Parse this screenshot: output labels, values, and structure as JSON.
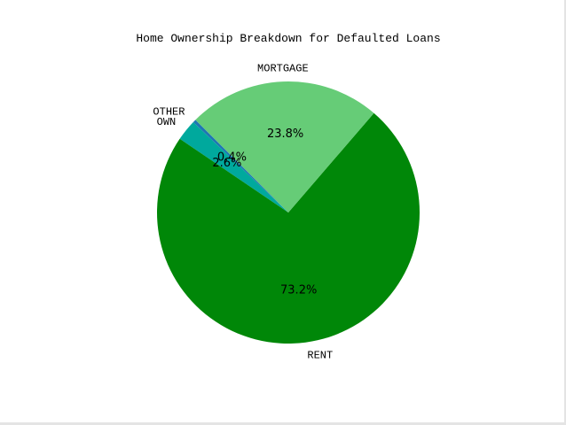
{
  "chart_data": {
    "type": "pie",
    "title": "Home Ownership Breakdown for Defaulted Loans",
    "start_angle_deg": 135,
    "direction": "counterclockwise",
    "slices": [
      {
        "label": "OTHER",
        "value": 0.4,
        "pct_label": "0.4%",
        "color": "#1f77b4"
      },
      {
        "label": "OWN",
        "value": 2.6,
        "pct_label": "2.6%",
        "color": "#00a99d"
      },
      {
        "label": "RENT",
        "value": 73.2,
        "pct_label": "73.2%",
        "color": "#008708"
      },
      {
        "label": "MORTGAGE",
        "value": 23.8,
        "pct_label": "23.8%",
        "color": "#66cc77"
      }
    ]
  }
}
